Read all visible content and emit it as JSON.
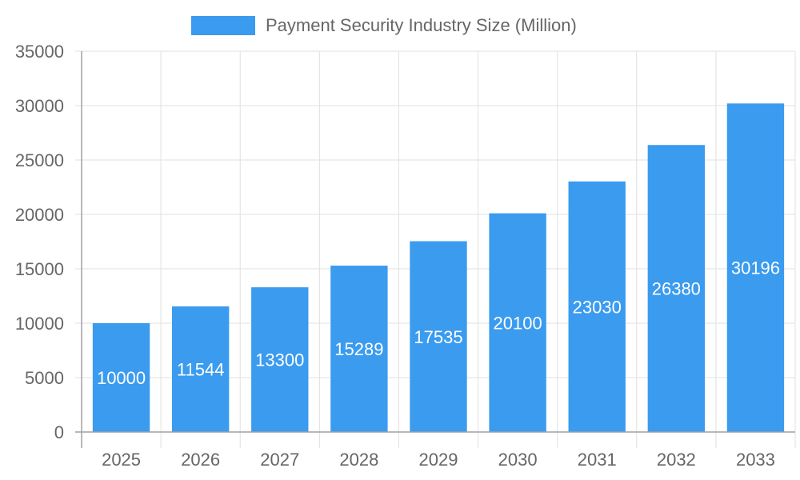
{
  "legend": {
    "label": "Payment Security Industry Size (Million)",
    "color": "#3a9bef"
  },
  "colors": {
    "bar": "#3a9bef",
    "grid": "#e0e0e0",
    "axis": "#a0a0a0",
    "tick_text": "#666666",
    "value_label": "#ffffff"
  },
  "chart_data": {
    "type": "bar",
    "title": "",
    "xlabel": "",
    "ylabel": "",
    "categories": [
      "2025",
      "2026",
      "2027",
      "2028",
      "2029",
      "2030",
      "2031",
      "2032",
      "2033"
    ],
    "series": [
      {
        "name": "Payment Security Industry Size (Million)",
        "values": [
          10000,
          11544,
          13300,
          15289,
          17535,
          20100,
          23030,
          26380,
          30196
        ]
      }
    ],
    "ylim": [
      0,
      35000
    ],
    "yticks": [
      0,
      5000,
      10000,
      15000,
      20000,
      25000,
      30000,
      35000
    ],
    "grid": true,
    "legend_position": "top",
    "data_labels": true
  }
}
